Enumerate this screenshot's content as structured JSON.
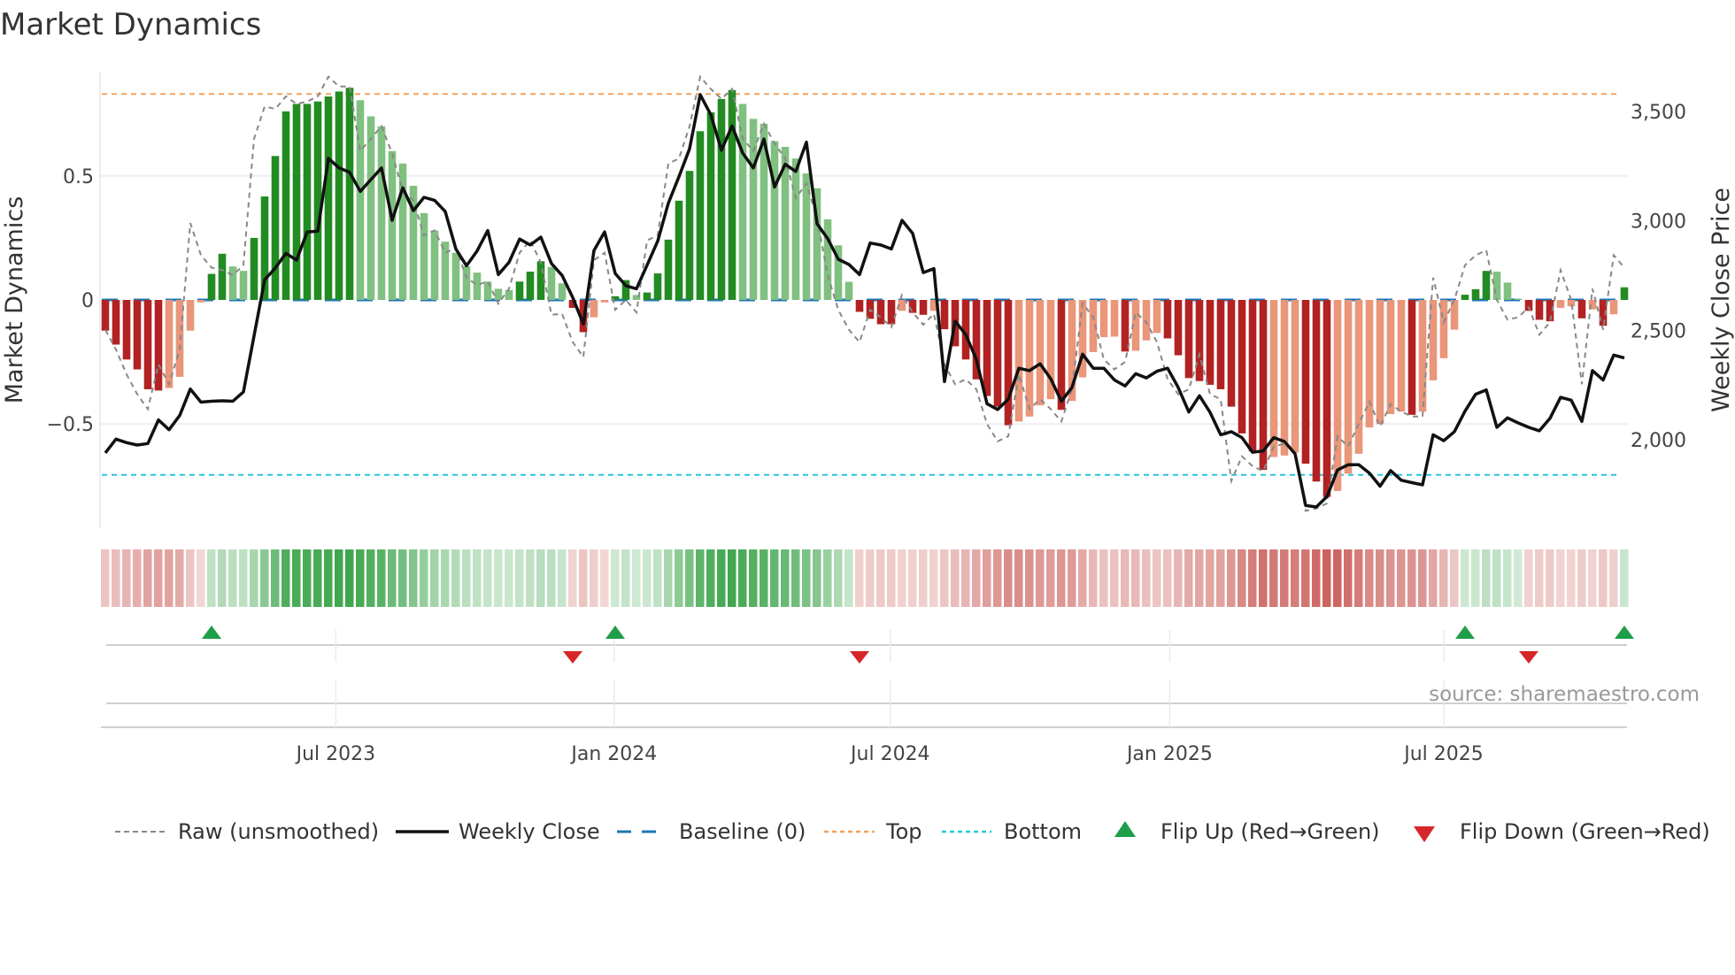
{
  "title": "Market Dynamics",
  "source": "source: sharemaestro.com",
  "colors": {
    "dark_green": "#228b22",
    "light_green": "#80c080",
    "dark_red": "#b22222",
    "light_red": "#e9967a",
    "raw": "#888888",
    "close": "#111111",
    "baseline": "#1f77b4",
    "top": "#f4a460",
    "bottom": "#26c6da",
    "flip_up": "#1e9e48",
    "flip_down": "#d62728"
  },
  "chart_data": {
    "type": "bar",
    "title": "Market Dynamics",
    "ylabel": "Market Dynamics",
    "y2label": "Weekly Close Price",
    "ylim": [
      -0.92,
      0.92
    ],
    "y2lim": [
      1596,
      3682
    ],
    "yticks": [
      {
        "v": 0.5,
        "label": "0.5"
      },
      {
        "v": 0,
        "label": "0"
      },
      {
        "v": -0.5,
        "label": "−0.5"
      }
    ],
    "y2ticks": [
      {
        "v": 3500,
        "label": "3,500"
      },
      {
        "v": 3000,
        "label": "3,000"
      },
      {
        "v": 2500,
        "label": "2,500"
      },
      {
        "v": 2000,
        "label": "2,000"
      }
    ],
    "xticks": [
      {
        "week": 21.7,
        "label": "Jul 2023"
      },
      {
        "week": 47.9,
        "label": "Jan 2024"
      },
      {
        "week": 73.9,
        "label": "Jul 2024"
      },
      {
        "week": 100.2,
        "label": "Jan 2025"
      },
      {
        "week": 126,
        "label": "Jul 2025"
      }
    ],
    "top_level": 0.83,
    "bottom_level": -0.705,
    "baseline": 0,
    "values": [
      -0.124,
      -0.18,
      -0.24,
      -0.28,
      -0.36,
      -0.365,
      -0.355,
      -0.31,
      -0.124,
      -0.01,
      0.105,
      0.186,
      0.135,
      0.117,
      0.25,
      0.417,
      0.58,
      0.76,
      0.79,
      0.79,
      0.8,
      0.82,
      0.84,
      0.855,
      0.805,
      0.74,
      0.7,
      0.6,
      0.55,
      0.46,
      0.35,
      0.28,
      0.235,
      0.19,
      0.135,
      0.11,
      0.074,
      0.045,
      0.04,
      0.074,
      0.114,
      0.156,
      0.133,
      0.067,
      -0.032,
      -0.13,
      -0.07,
      -0.01,
      0.015,
      0.08,
      0.02,
      0.03,
      0.107,
      0.243,
      0.4,
      0.52,
      0.68,
      0.756,
      0.81,
      0.846,
      0.79,
      0.73,
      0.71,
      0.64,
      0.617,
      0.57,
      0.51,
      0.45,
      0.325,
      0.22,
      0.073,
      -0.048,
      -0.076,
      -0.098,
      -0.098,
      -0.044,
      -0.052,
      -0.06,
      -0.044,
      -0.118,
      -0.187,
      -0.24,
      -0.32,
      -0.387,
      -0.43,
      -0.505,
      -0.49,
      -0.47,
      -0.425,
      -0.4,
      -0.443,
      -0.407,
      -0.312,
      -0.21,
      -0.15,
      -0.148,
      -0.208,
      -0.205,
      -0.163,
      -0.133,
      -0.155,
      -0.223,
      -0.315,
      -0.327,
      -0.342,
      -0.36,
      -0.43,
      -0.538,
      -0.61,
      -0.685,
      -0.633,
      -0.627,
      -0.615,
      -0.66,
      -0.732,
      -0.794,
      -0.77,
      -0.7,
      -0.62,
      -0.514,
      -0.5,
      -0.46,
      -0.45,
      -0.463,
      -0.45,
      -0.324,
      -0.235,
      -0.12,
      0.021,
      0.043,
      0.117,
      0.114,
      0.07,
      0.005,
      -0.044,
      -0.08,
      -0.086,
      -0.032,
      -0.026,
      -0.074,
      -0.038,
      -0.104,
      -0.058,
      0.051
    ],
    "shade": "DDDDDDLLLLDDLLDDDDDDDDDDLLLLLLLLLLLLLLLDDDLLDDLLDDLDDDDDDDDDLLLLLLLLLLLDDDDLDDLDDDDDDDLLLLDLLLLLDLLLDDDDDDDDDDLLLDDDLLLLLLLDLLLLDDDLLLDDDLLDLDLD",
    "raw": [
      -0.12,
      -0.2,
      -0.3,
      -0.38,
      -0.44,
      -0.26,
      -0.34,
      -0.2,
      0.31,
      0.18,
      0.13,
      0.12,
      0.1,
      0.14,
      0.65,
      0.78,
      0.77,
      0.82,
      0.79,
      0.8,
      0.82,
      0.9,
      0.86,
      0.86,
      0.6,
      0.65,
      0.7,
      0.59,
      0.44,
      0.4,
      0.26,
      0.28,
      0.19,
      0.21,
      0.09,
      0.06,
      0.075,
      -0.015,
      0.045,
      0.19,
      0.24,
      0.15,
      -0.06,
      -0.056,
      -0.17,
      -0.23,
      0.16,
      0.19,
      -0.04,
      0,
      -0.05,
      0.24,
      0.26,
      0.55,
      0.57,
      0.7,
      0.9,
      0.85,
      0.81,
      0.85,
      0.65,
      0.6,
      0.71,
      0.63,
      0.57,
      0.41,
      0.47,
      0.33,
      0.1,
      -0.04,
      -0.12,
      -0.17,
      -0.04,
      -0.07,
      -0.11,
      0.02,
      -0.05,
      -0.1,
      -0.056,
      -0.26,
      -0.34,
      -0.32,
      -0.36,
      -0.5,
      -0.57,
      -0.55,
      -0.3,
      -0.44,
      -0.4,
      -0.44,
      -0.49,
      -0.36,
      -0.014,
      -0.07,
      -0.24,
      -0.28,
      -0.25,
      -0.05,
      -0.09,
      -0.17,
      -0.32,
      -0.38,
      -0.36,
      -0.22,
      -0.38,
      -0.4,
      -0.73,
      -0.63,
      -0.67,
      -0.69,
      -0.59,
      -0.58,
      -0.61,
      -0.85,
      -0.84,
      -0.82,
      -0.55,
      -0.59,
      -0.5,
      -0.41,
      -0.51,
      -0.42,
      -0.45,
      -0.47,
      -0.47,
      0.09,
      -0.09,
      0,
      0.14,
      0.18,
      0.2,
      0,
      -0.08,
      -0.07,
      -0.03,
      -0.14,
      -0.09,
      0.12,
      0,
      -0.34,
      0.045,
      -0.12,
      0.18,
      0.13
    ],
    "close": [
      1940,
      2003,
      1987,
      1976,
      1983,
      2091,
      2046,
      2111,
      2232,
      2172,
      2176,
      2178,
      2176,
      2219,
      2475,
      2731,
      2785,
      2852,
      2821,
      2949,
      2953,
      3286,
      3242,
      3222,
      3135,
      3189,
      3242,
      3003,
      3151,
      3047,
      3108,
      3094,
      3043,
      2872,
      2795,
      2863,
      2956,
      2755,
      2811,
      2917,
      2890,
      2926,
      2805,
      2751,
      2650,
      2529,
      2865,
      2950,
      2760,
      2704,
      2690,
      2798,
      2908,
      3081,
      3202,
      3330,
      3577,
      3485,
      3323,
      3434,
      3310,
      3242,
      3374,
      3155,
      3259,
      3226,
      3360,
      2987,
      2919,
      2825,
      2801,
      2755,
      2899,
      2890,
      2872,
      3003,
      2943,
      2764,
      2782,
      2266,
      2542,
      2481,
      2367,
      2165,
      2138,
      2185,
      2327,
      2316,
      2347,
      2279,
      2176,
      2239,
      2391,
      2327,
      2327,
      2273,
      2246,
      2302,
      2283,
      2313,
      2327,
      2239,
      2127,
      2201,
      2125,
      2023,
      2037,
      2010,
      1943,
      1949,
      2010,
      1992,
      1936,
      1700,
      1693,
      1740,
      1862,
      1886,
      1886,
      1848,
      1788,
      1859,
      1815,
      1804,
      1794,
      2023,
      1996,
      2037,
      2131,
      2208,
      2228,
      2057,
      2100,
      2077,
      2057,
      2041,
      2098,
      2194,
      2181,
      2084,
      2316,
      2273,
      2387,
      2374
    ],
    "flip_up_weeks": [
      10,
      48,
      128,
      143
    ],
    "flip_down_weeks": [
      44,
      71,
      134
    ],
    "legend": {
      "placement": "bottom",
      "raw": "Raw (unsmoothed)",
      "close": "Weekly Close",
      "baseline": "Baseline (0)",
      "top": "Top",
      "bottom": "Bottom",
      "flip_up": "Flip Up (Red→Green)",
      "flip_down": "Flip Down (Green→Red)"
    }
  }
}
